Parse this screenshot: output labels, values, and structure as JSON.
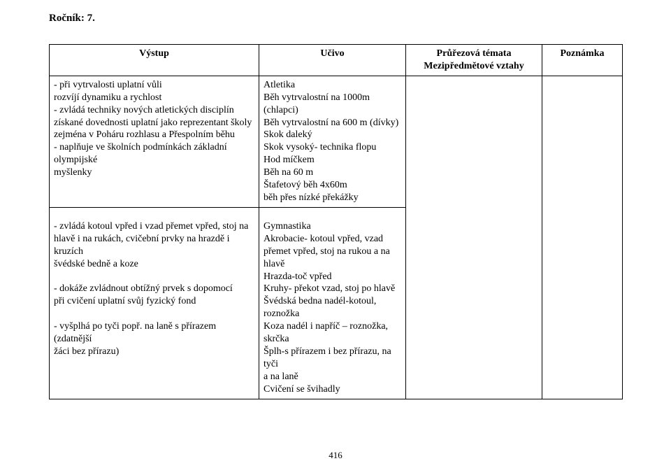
{
  "heading": "Ročník: 7.",
  "pageNumber": "416",
  "table": {
    "headers": {
      "vystup": "Výstup",
      "ucivo": "Učivo",
      "prurez": "Průřezová témata\nMezipředmětové vztahy",
      "poznamka": "Poznámka"
    },
    "rows": [
      {
        "vystup": "- při vytrvalosti uplatní vůli\n rozvíjí dynamiku a rychlost\n- zvládá techniky nových atletických disciplín\n získané dovednosti uplatní jako reprezentant školy\n zejména v Poháru rozhlasu a Přespolním běhu\n- naplňuje ve školních podmínkách základní olympijské\n myšlenky",
        "ucivo": "Atletika\nBěh vytrvalostní na 1000m (chlapci)\nBěh vytrvalostní na 600 m (dívky)\nSkok daleký\nSkok vysoký- technika flopu\nHod míčkem\nBěh na 60 m\nŠtafetový běh 4x60m\nběh přes nízké překážky",
        "prurez": "",
        "poznamka": ""
      },
      {
        "vystup": "- zvládá kotoul vpřed i vzad přemet vpřed, stoj na\nhlavě i na rukách, cvičební prvky na hrazdě i kruzích\nšvédské bedně a koze\n\n- dokáže zvládnout obtížný prvek s dopomocí\npři cvičení uplatní svůj fyzický fond\n\n- vyšplhá po tyči popř. na laně s přírazem (zdatnější\nžáci bez přírazu)",
        "ucivo": "Gymnastika\nAkrobacie- kotoul vpřed, vzad\npřemet vpřed, stoj na rukou a na\nhlavě\nHrazda-toč vpřed\nKruhy- překot vzad, stoj po hlavě\nŠvédská bedna nadél-kotoul,\nroznožka\nKoza nadél i napříč – roznožka,\nskrčka\nŠplh-s přírazem i bez přírazu, na tyči\na na laně\nCvičení se švihadly",
        "prurez": "",
        "poznamka": ""
      }
    ]
  },
  "style": {
    "pageWidth": 960,
    "pageHeight": 669,
    "fontFamily": "Times New Roman",
    "headingFontSize": 15,
    "bodyFontSize": 14,
    "borderColor": "#000000",
    "backgroundColor": "#ffffff",
    "textColor": "#000000",
    "columnWidths": {
      "vystup": 300,
      "ucivo": 210,
      "prurez": 195,
      "poznamka": 115
    }
  }
}
